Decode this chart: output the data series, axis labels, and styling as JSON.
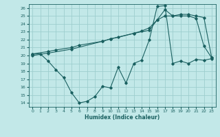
{
  "xlabel": "Humidex (Indice chaleur)",
  "ylabel": "",
  "bg_color": "#c2e8e8",
  "grid_color": "#9ecece",
  "line_color": "#1a6060",
  "xlim": [
    -0.5,
    23.5
  ],
  "ylim": [
    13.5,
    26.5
  ],
  "yticks": [
    14,
    15,
    16,
    17,
    18,
    19,
    20,
    21,
    22,
    23,
    24,
    25,
    26
  ],
  "xticks": [
    0,
    1,
    2,
    3,
    4,
    5,
    6,
    7,
    8,
    9,
    10,
    11,
    12,
    13,
    14,
    15,
    16,
    17,
    18,
    19,
    20,
    21,
    22,
    23
  ],
  "line1_x": [
    0,
    1,
    2,
    3,
    4,
    5,
    6,
    7,
    8,
    9,
    10,
    11,
    12,
    13,
    14,
    15,
    16,
    17,
    18,
    19,
    20,
    21,
    22,
    23
  ],
  "line1_y": [
    20.2,
    20.2,
    19.3,
    18.2,
    17.2,
    15.3,
    14.0,
    14.2,
    14.8,
    16.1,
    15.9,
    18.5,
    16.5,
    19.0,
    19.4,
    22.0,
    26.2,
    26.3,
    19.0,
    19.3,
    19.0,
    19.5,
    19.4,
    19.6
  ],
  "line2_x": [
    0,
    2,
    3,
    5,
    6,
    9,
    10,
    11,
    13,
    14,
    15,
    16,
    17,
    18,
    19,
    20,
    21,
    22,
    23
  ],
  "line2_y": [
    20.2,
    20.5,
    20.7,
    21.0,
    21.3,
    21.8,
    22.1,
    22.3,
    22.8,
    23.1,
    23.5,
    24.5,
    25.8,
    25.0,
    25.0,
    25.0,
    24.7,
    21.2,
    19.7
  ],
  "line3_x": [
    0,
    2,
    5,
    9,
    10,
    13,
    15,
    16,
    17,
    18,
    19,
    20,
    21,
    22,
    23
  ],
  "line3_y": [
    20.0,
    20.3,
    20.8,
    21.8,
    22.1,
    22.8,
    23.2,
    24.5,
    25.0,
    25.0,
    25.2,
    25.2,
    25.0,
    24.8,
    19.7
  ]
}
